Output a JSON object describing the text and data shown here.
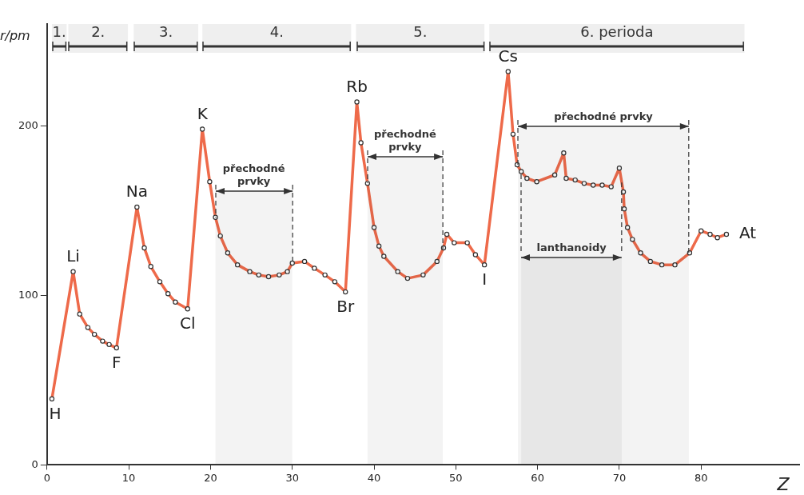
{
  "chart_data": {
    "type": "line",
    "xlabel": "Z",
    "ylabel": "r/pm",
    "x": [
      0.6,
      3.2,
      4.0,
      5.0,
      5.8,
      6.8,
      7.6,
      8.5,
      11.0,
      11.9,
      12.7,
      13.8,
      14.8,
      15.7,
      17.2,
      19.0,
      19.9,
      20.6,
      21.2,
      22.1,
      23.3,
      24.8,
      25.9,
      27.1,
      28.4,
      29.4,
      30.0,
      31.5,
      32.7,
      34.0,
      35.2,
      36.5,
      37.9,
      38.4,
      39.2,
      40.0,
      40.6,
      41.2,
      42.9,
      44.1,
      46.0,
      47.7,
      48.5,
      48.9,
      49.8,
      51.4,
      52.4,
      53.5,
      56.4,
      57.0,
      57.5,
      58.0,
      58.7,
      59.9,
      62.1,
      63.2,
      63.5,
      64.6,
      65.7,
      66.8,
      67.9,
      69.0,
      70.0,
      70.5,
      70.6,
      71.0,
      71.6,
      72.6,
      73.8,
      75.2,
      76.8,
      78.6,
      80.0,
      81.1,
      82.0,
      83.1
    ],
    "series": [
      {
        "color": "#ee6a4a",
        "values": [
          39,
          114,
          89,
          81,
          77,
          73,
          71,
          69,
          152,
          128,
          117,
          108,
          101,
          96,
          92,
          198,
          167,
          146,
          135,
          125,
          118,
          114,
          112,
          111,
          112,
          114,
          119,
          120,
          116,
          112,
          108,
          102,
          214,
          190,
          166,
          140,
          129,
          123,
          114,
          110,
          112,
          120,
          128,
          136,
          131,
          131,
          124,
          118,
          232,
          195,
          177,
          173,
          169,
          167,
          171,
          184,
          169,
          168,
          166,
          165,
          165,
          164,
          175,
          161,
          151,
          140,
          133,
          125,
          120,
          118,
          118,
          125,
          138,
          136,
          134,
          136
        ]
      }
    ],
    "xlim": [
      0,
      92
    ],
    "ylim": [
      0,
      260
    ],
    "xticks": [
      0,
      10,
      20,
      30,
      40,
      50,
      60,
      70,
      80
    ],
    "yticks": [
      0,
      100,
      200
    ],
    "grid": false,
    "legend": false,
    "marker": "circle",
    "line_style": "solid",
    "annotations": [
      {
        "text": "H",
        "x": 0.6,
        "y": 39
      },
      {
        "text": "Li",
        "x": 3.2,
        "y": 114
      },
      {
        "text": "F",
        "x": 8.5,
        "y": 69
      },
      {
        "text": "Na",
        "x": 11.0,
        "y": 152
      },
      {
        "text": "Cl",
        "x": 17.2,
        "y": 92
      },
      {
        "text": "K",
        "x": 19.0,
        "y": 198
      },
      {
        "text": "Br",
        "x": 36.5,
        "y": 102
      },
      {
        "text": "Rb",
        "x": 37.9,
        "y": 214
      },
      {
        "text": "I",
        "x": 53.5,
        "y": 118
      },
      {
        "text": "Cs",
        "x": 56.4,
        "y": 232
      },
      {
        "text": "At",
        "x": 83.1,
        "y": 136
      }
    ],
    "bands": [
      {
        "axis": "x",
        "from": 0.6,
        "to": 2.4,
        "label": "1.",
        "color": "#333333"
      },
      {
        "axis": "x",
        "from": 2.6,
        "to": 9.9,
        "label": "2.",
        "color": "#333333"
      },
      {
        "axis": "x",
        "from": 10.6,
        "to": 18.5,
        "label": "3.",
        "color": "#333333"
      },
      {
        "axis": "x",
        "from": 19.0,
        "to": 37.2,
        "label": "4.",
        "color": "#333333"
      },
      {
        "axis": "x",
        "from": 37.8,
        "to": 53.5,
        "label": "5.",
        "color": "#333333"
      },
      {
        "axis": "x",
        "from": 54.1,
        "to": 85.3,
        "label": "6. perioda",
        "color": "#333333"
      },
      {
        "axis": "x",
        "from": 20.6,
        "to": 30.0,
        "label": "přechodné prvky",
        "color": "#333333"
      },
      {
        "axis": "x",
        "from": 39.2,
        "to": 48.4,
        "label": "přechodné prvky",
        "color": "#333333"
      },
      {
        "axis": "x",
        "from": 57.6,
        "to": 78.5,
        "label": "přechodné prvky",
        "color": "#333333"
      },
      {
        "axis": "x",
        "from": 58.0,
        "to": 70.3,
        "label": "lanthanoidy",
        "color": "#333333"
      }
    ]
  }
}
